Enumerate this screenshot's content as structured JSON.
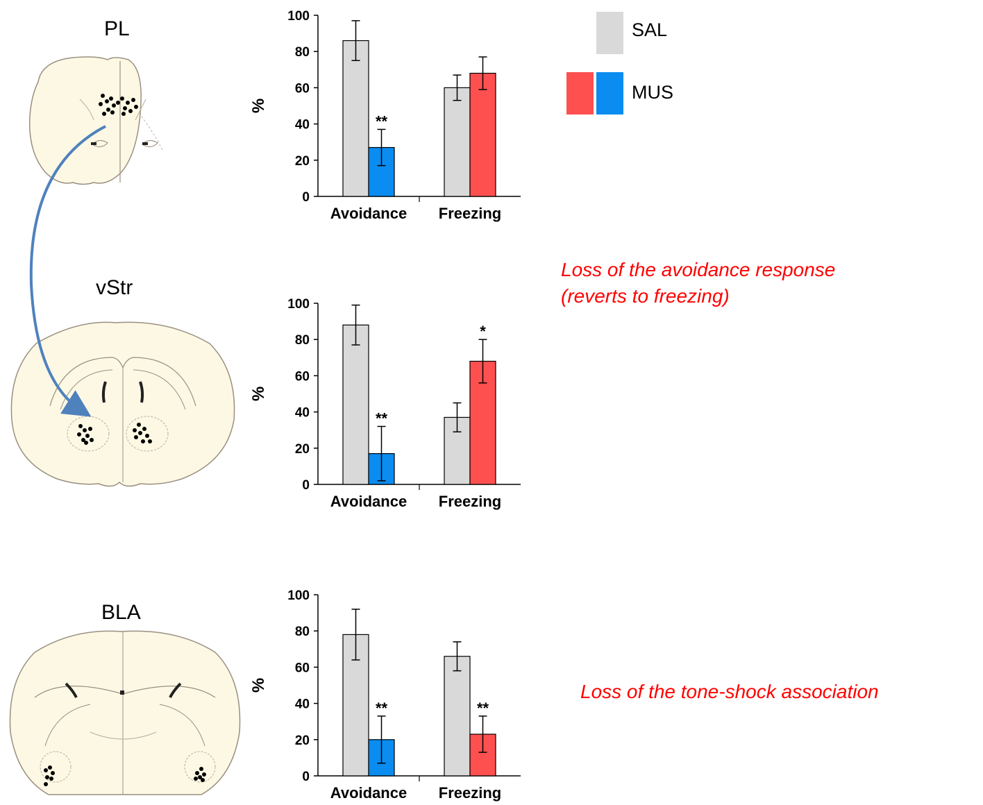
{
  "colors": {
    "sal": "#d9d9d9",
    "mus_freezing": "#ff5050",
    "mus_avoidance": "#0a8cf0",
    "arrow": "#4f81bd",
    "note": "#ff0000",
    "brain_fill": "#fcf8e4"
  },
  "regions": [
    {
      "label": "PL"
    },
    {
      "label": "vStr"
    },
    {
      "label": "BLA"
    }
  ],
  "legend": {
    "sal": "SAL",
    "mus": "MUS"
  },
  "notes": {
    "vstr_line1": "Loss of the avoidance response",
    "vstr_line2": "(reverts to freezing)",
    "bla": "Loss of the tone-shock association"
  },
  "chart_data": [
    {
      "type": "bar",
      "panel": "PL",
      "categories": [
        "Avoidance",
        "Freezing"
      ],
      "ylabel": "%",
      "ylim": [
        0,
        100
      ],
      "yticks": [
        "0",
        "20",
        "40",
        "60",
        "80",
        "100"
      ],
      "series": [
        {
          "name": "SAL",
          "values": [
            86,
            60
          ],
          "errors": [
            11,
            7
          ]
        },
        {
          "name": "MUS",
          "values": [
            27,
            68
          ],
          "errors": [
            10,
            9
          ]
        }
      ],
      "significance": [
        {
          "category": "Avoidance",
          "series": "MUS",
          "mark": "**"
        }
      ]
    },
    {
      "type": "bar",
      "panel": "vStr",
      "categories": [
        "Avoidance",
        "Freezing"
      ],
      "ylabel": "%",
      "ylim": [
        0,
        100
      ],
      "yticks": [
        "0",
        "20",
        "40",
        "60",
        "80",
        "100"
      ],
      "series": [
        {
          "name": "SAL",
          "values": [
            88,
            37
          ],
          "errors": [
            11,
            8
          ]
        },
        {
          "name": "MUS",
          "values": [
            17,
            68
          ],
          "errors": [
            15,
            12
          ]
        }
      ],
      "significance": [
        {
          "category": "Avoidance",
          "series": "MUS",
          "mark": "**"
        },
        {
          "category": "Freezing",
          "series": "MUS",
          "mark": "*"
        }
      ]
    },
    {
      "type": "bar",
      "panel": "BLA",
      "categories": [
        "Avoidance",
        "Freezing"
      ],
      "ylabel": "%",
      "ylim": [
        0,
        100
      ],
      "yticks": [
        "0",
        "20",
        "40",
        "60",
        "80",
        "100"
      ],
      "series": [
        {
          "name": "SAL",
          "values": [
            78,
            66
          ],
          "errors": [
            14,
            8
          ]
        },
        {
          "name": "MUS",
          "values": [
            20,
            23
          ],
          "errors": [
            13,
            10
          ]
        }
      ],
      "significance": [
        {
          "category": "Avoidance",
          "series": "MUS",
          "mark": "**"
        },
        {
          "category": "Freezing",
          "series": "MUS",
          "mark": "**"
        }
      ]
    }
  ]
}
